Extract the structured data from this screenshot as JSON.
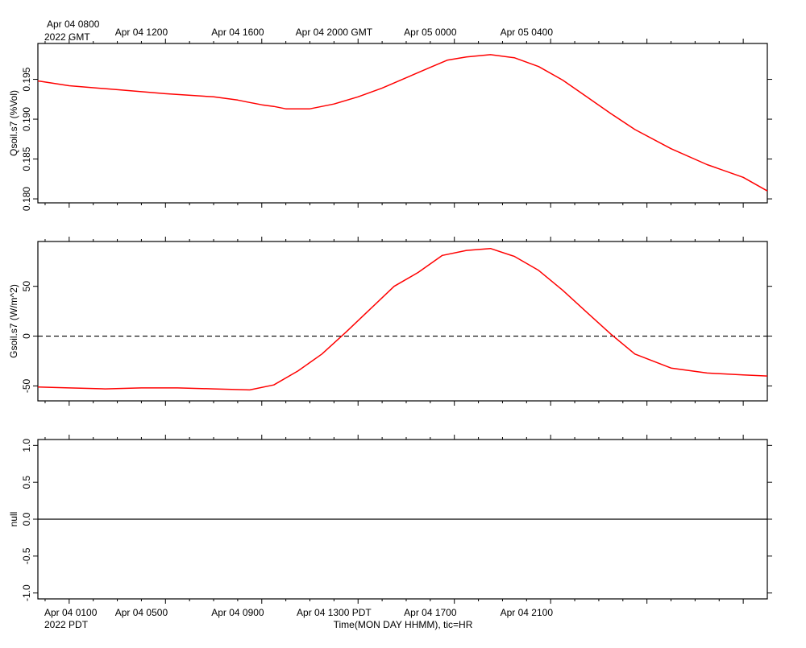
{
  "header": {
    "first_label": "Apr 04 0800",
    "first_year": "2022 GMT",
    "ticks": [
      "Apr 04 1200",
      "Apr 04 1600",
      "Apr 04 2000 GMT",
      "Apr 05 0000",
      "Apr 05 0400"
    ]
  },
  "footer": {
    "first_label": "Apr 04 0100",
    "first_year": "2022 PDT",
    "ticks": [
      "Apr 04 0500",
      "Apr 04 0900",
      "Apr 04 1300 PDT",
      "Apr 04 1700",
      "Apr 04 2100"
    ],
    "axis_title": "Time(MON DAY HHMM), tic=HR"
  },
  "chart_data": [
    {
      "type": "line",
      "ylabel": "Qsoil.s7 (%Vol)",
      "y_ticks": [
        "0.180",
        "0.185",
        "0.190",
        "0.195"
      ],
      "ylim": [
        0.1795,
        0.1995
      ],
      "x_unit": "hours since Apr 04 0100 PDT",
      "xlim": [
        -1.3,
        29.0
      ],
      "series": [
        {
          "color": "#ff0000",
          "x": [
            -1.3,
            0,
            2,
            4,
            6,
            7,
            7.5,
            8,
            8.5,
            9,
            10,
            11,
            12,
            13,
            14,
            15,
            15.7,
            16.5,
            17.5,
            18.5,
            19.5,
            20.5,
            21.5,
            22.5,
            23.5,
            25,
            26.5,
            28,
            29
          ],
          "y": [
            0.1948,
            0.1942,
            0.1937,
            0.1932,
            0.1928,
            0.1924,
            0.1921,
            0.1918,
            0.1916,
            0.1913,
            0.1913,
            0.1919,
            0.1928,
            0.1939,
            0.1952,
            0.1965,
            0.1974,
            0.1978,
            0.1981,
            0.1977,
            0.1966,
            0.1949,
            0.1928,
            0.1907,
            0.1887,
            0.1863,
            0.1843,
            0.1827,
            0.181
          ]
        }
      ],
      "reference_lines": []
    },
    {
      "type": "line",
      "ylabel": "Gsoil.s7 (W/m^2)",
      "y_ticks": [
        "-50",
        "0",
        "50"
      ],
      "ylim": [
        -65,
        95
      ],
      "x_unit": "hours since Apr 04 0100 PDT",
      "xlim": [
        -1.3,
        29.0
      ],
      "series": [
        {
          "color": "#ff0000",
          "x": [
            -1.3,
            0,
            1.5,
            3,
            4.5,
            6,
            7.5,
            8.5,
            9.5,
            10.5,
            11.5,
            12.5,
            13.5,
            14.5,
            15.5,
            16.5,
            17.5,
            18.5,
            19.5,
            20.5,
            21.5,
            22.5,
            23.5,
            25,
            26.5,
            28,
            29
          ],
          "y": [
            -51,
            -52,
            -53,
            -52,
            -52,
            -53,
            -54,
            -49,
            -35,
            -18,
            4,
            27,
            50,
            64,
            81,
            86,
            88,
            80,
            66,
            46,
            24,
            2,
            -18,
            -32,
            -37,
            -39,
            -40
          ]
        }
      ],
      "reference_lines": [
        0
      ]
    },
    {
      "type": "line",
      "ylabel": "null",
      "y_ticks": [
        "-1.0",
        "-0.5",
        "0.0",
        "0.5",
        "1.0"
      ],
      "ylim": [
        -1.08,
        1.08
      ],
      "x_unit": "hours since Apr 04 0100 PDT",
      "xlim": [
        -1.3,
        29.0
      ],
      "series": [],
      "reference_lines": [
        0
      ]
    }
  ]
}
